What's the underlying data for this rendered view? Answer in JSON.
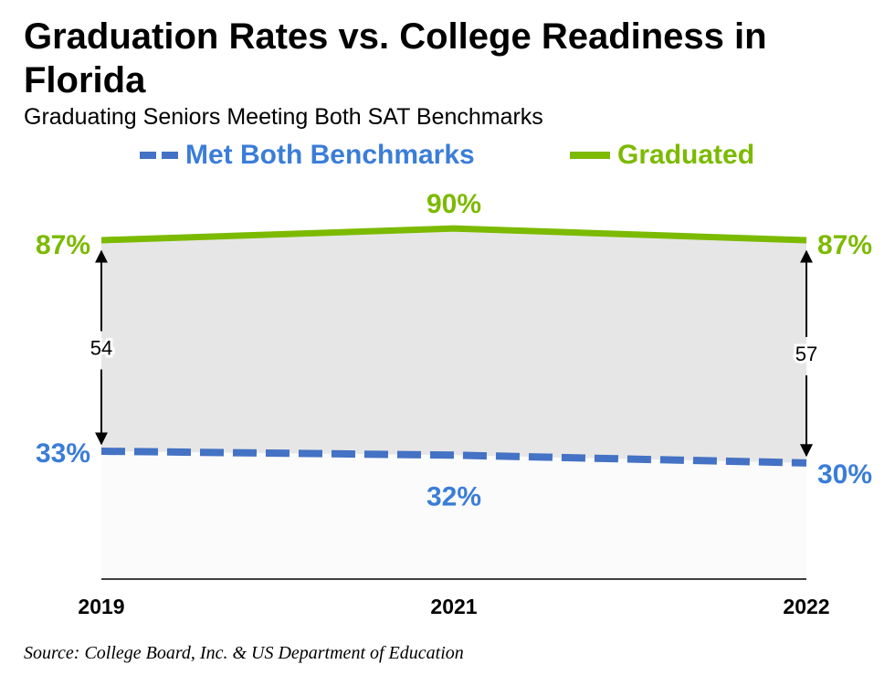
{
  "title": "Graduation Rates vs. College Readiness in Florida",
  "subtitle": "Graduating Seniors Meeting Both SAT Benchmarks",
  "source": "Source: College Board, Inc. & US Department of Education",
  "colors": {
    "graduated": "#7cba00",
    "met": "#4472c4",
    "met_label": "#3b7dd8",
    "gap_fill": "#e7e6e6",
    "below_fill": "#fbfbfb"
  },
  "chart_data": {
    "type": "line",
    "categories": [
      "2019",
      "2021",
      "2022"
    ],
    "series": [
      {
        "name": "Met Both Benchmarks",
        "values": [
          33,
          32,
          30
        ],
        "labels": [
          "33%",
          "32%",
          "30%"
        ],
        "style": "dashed"
      },
      {
        "name": "Graduated",
        "values": [
          87,
          90,
          87
        ],
        "labels": [
          "87%",
          "90%",
          "87%"
        ],
        "style": "solid"
      }
    ],
    "gaps": [
      {
        "category": "2019",
        "label": "54"
      },
      {
        "category": "2022",
        "label": "57"
      }
    ],
    "ylim": [
      0,
      100
    ],
    "legend_position": "top",
    "grid": false
  }
}
